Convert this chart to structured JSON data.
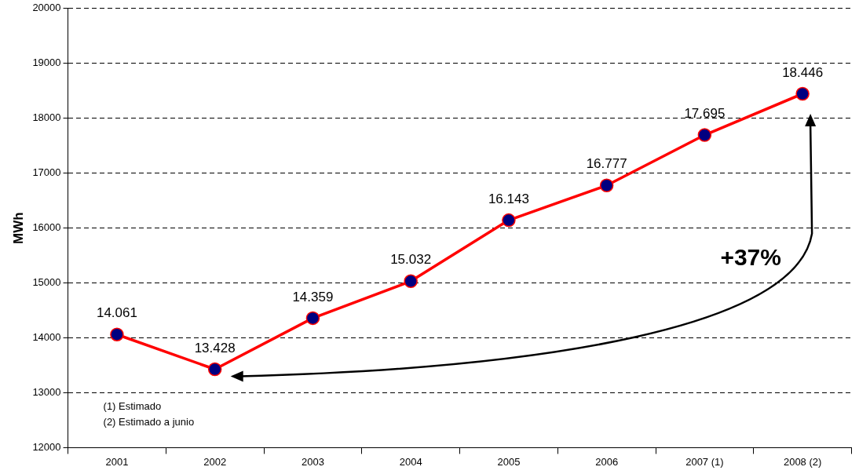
{
  "chart_data": {
    "type": "line",
    "ylabel": "MWh",
    "categories": [
      "2001",
      "2002",
      "2003",
      "2004",
      "2005",
      "2006",
      "2007 (1)",
      "2008 (2)"
    ],
    "series": [
      {
        "color": "#ff0000",
        "values": [
          14061,
          13428,
          14359,
          15032,
          16143,
          16777,
          17695,
          18446
        ],
        "value_labels": [
          "14.061",
          "13.428",
          "14.359",
          "15.032",
          "16.143",
          "16.777",
          "17.695",
          "18.446"
        ]
      }
    ],
    "marker": "circle",
    "line_style": "solid",
    "ylim": [
      12000,
      20000
    ],
    "yticks": [
      12000,
      13000,
      14000,
      15000,
      16000,
      17000,
      18000,
      19000,
      20000
    ],
    "grid": "y",
    "legend": false,
    "annotations": [
      "+37%",
      "(1) Estimado",
      "(2) Estimado a junio"
    ]
  }
}
